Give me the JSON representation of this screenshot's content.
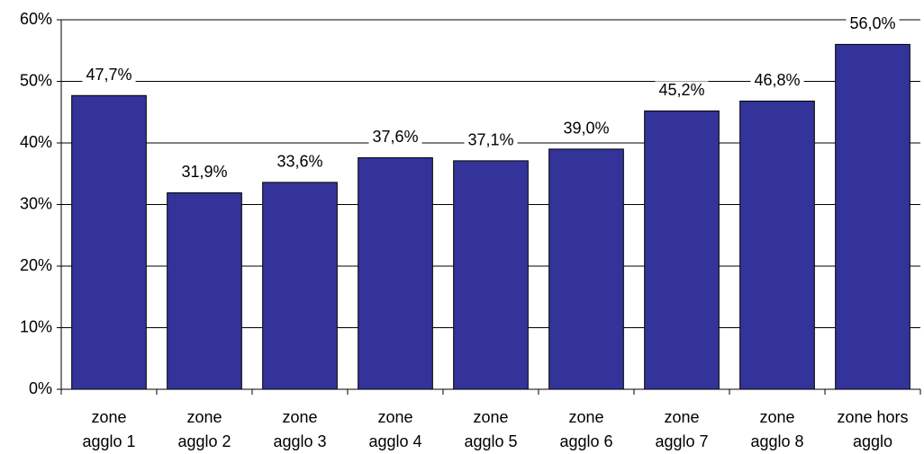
{
  "chart_data": {
    "type": "bar",
    "categories": [
      [
        "zone",
        "agglo 1"
      ],
      [
        "zone",
        "agglo 2"
      ],
      [
        "zone",
        "agglo 3"
      ],
      [
        "zone",
        "agglo 4"
      ],
      [
        "zone",
        "agglo 5"
      ],
      [
        "zone",
        "agglo 6"
      ],
      [
        "zone",
        "agglo 7"
      ],
      [
        "zone",
        "agglo 8"
      ],
      [
        "zone hors",
        "agglo"
      ]
    ],
    "values": [
      47.7,
      31.9,
      33.6,
      37.6,
      37.1,
      39.0,
      45.2,
      46.8,
      56.0
    ],
    "value_labels": [
      "47,7%",
      "31,9%",
      "33,6%",
      "37,6%",
      "37,1%",
      "39,0%",
      "45,2%",
      "46,8%",
      "56,0%"
    ],
    "color": "#333399",
    "ylim": [
      0,
      60
    ],
    "yticks": [
      {
        "value": 0,
        "label": "0%"
      },
      {
        "value": 10,
        "label": "10%"
      },
      {
        "value": 20,
        "label": "20%"
      },
      {
        "value": 30,
        "label": "30%"
      },
      {
        "value": 40,
        "label": "40%"
      },
      {
        "value": 50,
        "label": "50%"
      },
      {
        "value": 60,
        "label": "60%"
      }
    ],
    "grid": true
  }
}
